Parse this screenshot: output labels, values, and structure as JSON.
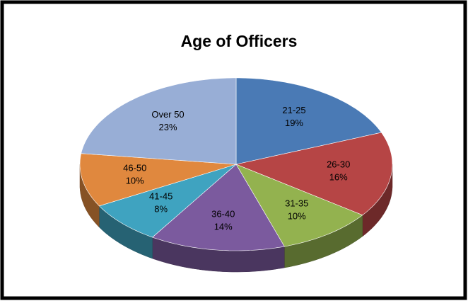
{
  "chart_data": {
    "type": "pie",
    "title": "Age of Officers",
    "categories": [
      "21-25",
      "26-30",
      "31-35",
      "36-40",
      "41-45",
      "46-50",
      "Over 50"
    ],
    "values": [
      19,
      16,
      10,
      14,
      8,
      10,
      23
    ],
    "value_labels": [
      "19%",
      "16%",
      "10%",
      "14%",
      "8%",
      "10%",
      "23%"
    ],
    "colors": [
      "#4a7ab5",
      "#b64545",
      "#93b24f",
      "#7b5a9e",
      "#3fa3c0",
      "#e0883e",
      "#98aed6"
    ]
  }
}
